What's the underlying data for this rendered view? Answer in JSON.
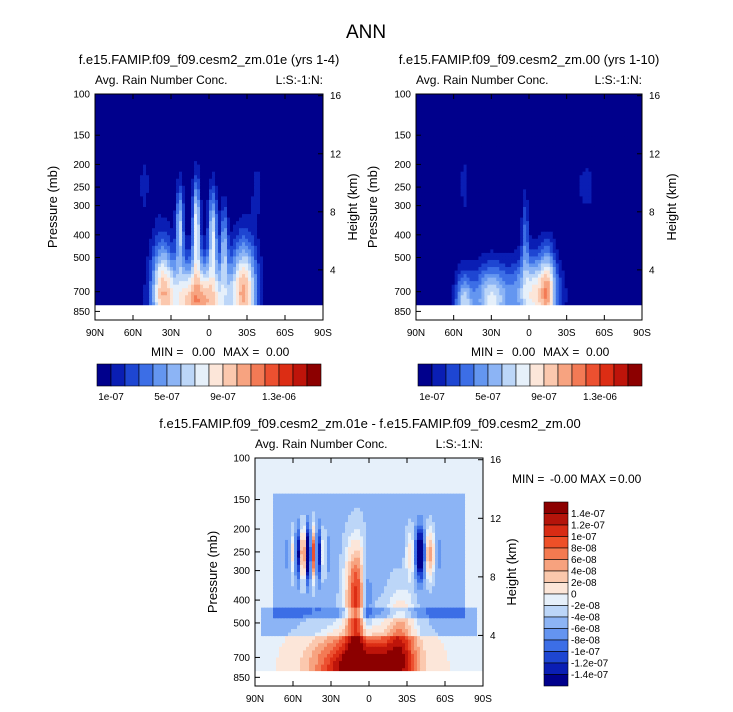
{
  "chart_data": {
    "type": "heatmap",
    "title": "ANN",
    "x_ticks": [
      "90N",
      "60N",
      "30N",
      "0",
      "30S",
      "60S",
      "90S"
    ],
    "x_tick_values": [
      90,
      60,
      30,
      0,
      -30,
      -60,
      -90
    ],
    "xlim": [
      90,
      -90
    ],
    "ylim_pressure_mb": [
      100,
      925
    ],
    "y_ticks_pressure": [
      "100",
      "150",
      "200",
      "250",
      "300",
      "400",
      "500",
      "700",
      "850"
    ],
    "y_tick_values_pressure": [
      100,
      150,
      200,
      250,
      300,
      400,
      500,
      700,
      850
    ],
    "y_ticks_height": [
      "16",
      "12",
      "8",
      "4"
    ],
    "y_tick_values_height": [
      16,
      12,
      8,
      4
    ],
    "colormap": [
      "#00008c",
      "#0a1eb4",
      "#1e46d2",
      "#3c6ee6",
      "#6496f0",
      "#8cb4f5",
      "#bcd6f8",
      "#e6f0fa",
      "#fce6d9",
      "#fbc8ae",
      "#f7a380",
      "#f37a55",
      "#ec5030",
      "#dc2d14",
      "#be140a",
      "#8c0000"
    ],
    "panels": [
      {
        "id": "model",
        "case_title": "f.e15.FAMIP.f09_f09.cesm2_zm.01e (yrs 1-4)",
        "variable": "Avg. Rain Number Conc.",
        "units_label": "L:S:-1:N:",
        "xlabel": "",
        "ylabel_left": "Pressure (mb)",
        "ylabel_right": "Height (km)",
        "min_label": "MIN =",
        "min_value": "0.00",
        "max_label": "MAX =",
        "max_value": "0.00",
        "colorbar_labels": [
          "1e-07",
          "5e-07",
          "9e-07",
          "1.3e-06"
        ]
      },
      {
        "id": "reference",
        "case_title": "f.e15.FAMIP.f09_f09.cesm2_zm.00 (yrs 1-10)",
        "variable": "Avg. Rain Number Conc.",
        "units_label": "L:S:-1:N:",
        "xlabel": "",
        "ylabel_left": "Pressure (mb)",
        "ylabel_right": "Height (km)",
        "min_label": "MIN =",
        "min_value": "0.00",
        "max_label": "MAX =",
        "max_value": "0.00",
        "colorbar_labels": [
          "1e-07",
          "5e-07",
          "9e-07",
          "1.3e-06"
        ]
      },
      {
        "id": "difference",
        "case_title": "f.e15.FAMIP.f09_f09.cesm2_zm.01e - f.e15.FAMIP.f09_f09.cesm2_zm.00",
        "variable": "Avg. Rain Number Conc.",
        "units_label": "L:S:-1:N:",
        "xlabel": "",
        "ylabel_left": "Pressure (mb)",
        "ylabel_right": "Height (km)",
        "min_label": "MIN =",
        "min_value": "-0.00",
        "max_label": "MAX =",
        "max_value": "0.00",
        "colorbar_labels": [
          "1.4e-07",
          "1.2e-07",
          "1e-07",
          "8e-08",
          "6e-08",
          "4e-08",
          "2e-08",
          "0",
          "-2e-08",
          "-4e-08",
          "-6e-08",
          "-8e-08",
          "-1e-07",
          "-1.2e-07",
          "-1.4e-07"
        ],
        "colorbar_colors": [
          "#8c0000",
          "#b4140a",
          "#d82c14",
          "#ee5028",
          "#f47a50",
          "#f7a27e",
          "#fac8ac",
          "#fce6d8",
          "#e6f0fa",
          "#bcd6f8",
          "#8cb4f5",
          "#6494f0",
          "#3c6ee6",
          "#1e46d2",
          "#0a1eb4",
          "#00008c"
        ]
      }
    ]
  }
}
